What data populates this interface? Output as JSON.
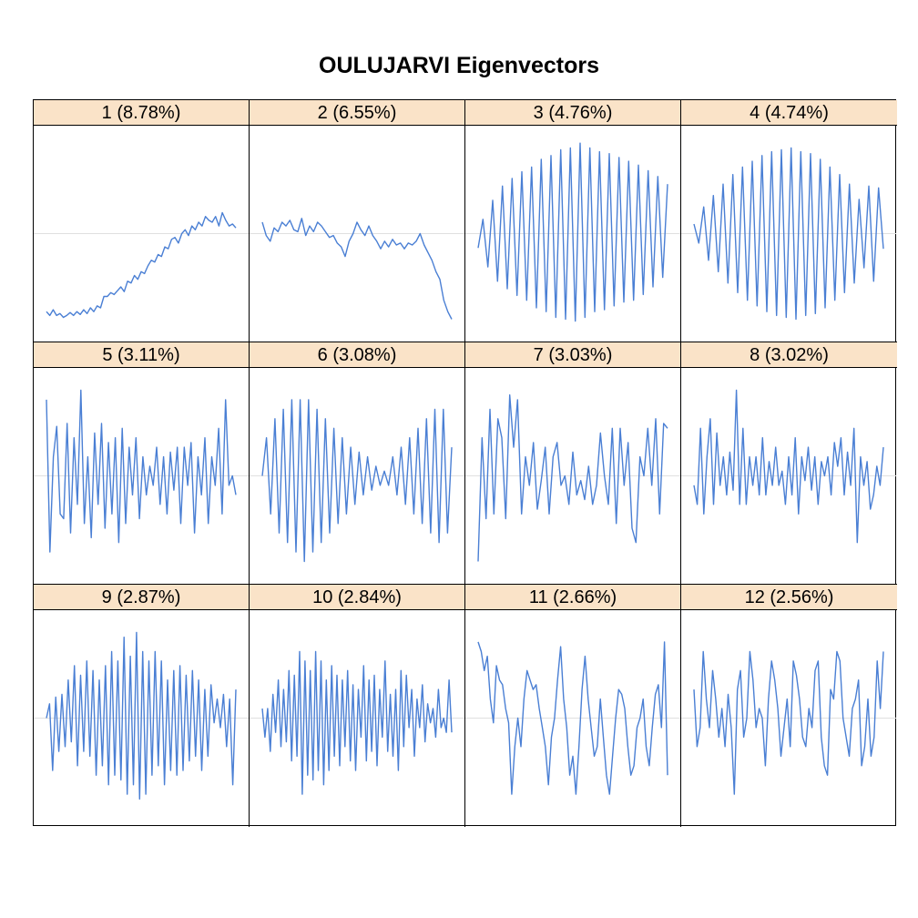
{
  "chart_data": {
    "type": "line",
    "title": "OULUJARVI Eigenvectors",
    "layout": "4x3 panel grid",
    "zero_line": true,
    "ylim": [
      -1,
      1
    ],
    "line_color": "#4a7fd4",
    "strip_color": "#fae3c8",
    "gridline_color": "#e0e0e0",
    "panels": [
      {
        "label": "1 (8.78%)",
        "values": [
          -0.82,
          -0.86,
          -0.8,
          -0.86,
          -0.84,
          -0.88,
          -0.86,
          -0.83,
          -0.86,
          -0.82,
          -0.85,
          -0.8,
          -0.84,
          -0.78,
          -0.82,
          -0.76,
          -0.78,
          -0.66,
          -0.66,
          -0.62,
          -0.64,
          -0.6,
          -0.56,
          -0.61,
          -0.5,
          -0.52,
          -0.44,
          -0.48,
          -0.4,
          -0.42,
          -0.34,
          -0.28,
          -0.3,
          -0.22,
          -0.24,
          -0.14,
          -0.16,
          -0.06,
          -0.04,
          -0.1,
          0.0,
          0.04,
          -0.02,
          0.08,
          0.04,
          0.12,
          0.08,
          0.18,
          0.14,
          0.12,
          0.18,
          0.08,
          0.22,
          0.14,
          0.08,
          0.1,
          0.06
        ]
      },
      {
        "label": "2 (6.55%)",
        "values": [
          0.12,
          -0.02,
          -0.08,
          0.06,
          0.02,
          0.12,
          0.08,
          0.14,
          0.04,
          0.02,
          0.16,
          -0.02,
          0.08,
          0.02,
          0.12,
          0.08,
          0.02,
          -0.04,
          -0.02,
          -0.1,
          -0.14,
          -0.24,
          -0.08,
          0.0,
          0.12,
          0.04,
          -0.02,
          0.08,
          -0.02,
          -0.08,
          -0.16,
          -0.08,
          -0.14,
          -0.06,
          -0.12,
          -0.1,
          -0.16,
          -0.1,
          -0.12,
          -0.08,
          0.0,
          -0.12,
          -0.2,
          -0.28,
          -0.4,
          -0.48,
          -0.7,
          -0.82,
          -0.9
        ]
      },
      {
        "label": "3 (4.76%)",
        "values": [
          -0.15,
          0.15,
          -0.35,
          0.35,
          -0.5,
          0.5,
          -0.58,
          0.58,
          -0.65,
          0.65,
          -0.7,
          0.7,
          -0.78,
          0.78,
          -0.82,
          0.82,
          -0.88,
          0.88,
          -0.9,
          0.9,
          -0.92,
          0.95,
          -0.88,
          0.9,
          -0.82,
          0.86,
          -0.8,
          0.84,
          -0.76,
          0.8,
          -0.72,
          0.76,
          -0.7,
          0.72,
          -0.64,
          0.66,
          -0.56,
          0.6,
          -0.46,
          0.52
        ]
      },
      {
        "label": "4 (4.74%)",
        "values": [
          0.1,
          -0.1,
          0.28,
          -0.28,
          0.4,
          -0.4,
          0.52,
          -0.52,
          0.62,
          -0.62,
          0.7,
          -0.7,
          0.76,
          -0.76,
          0.82,
          -0.82,
          0.86,
          -0.86,
          0.88,
          -0.88,
          0.9,
          -0.9,
          0.86,
          -0.86,
          0.84,
          -0.84,
          0.78,
          -0.78,
          0.7,
          -0.7,
          0.62,
          -0.62,
          0.52,
          -0.52,
          0.36,
          -0.36,
          0.5,
          -0.5,
          0.48,
          -0.16
        ]
      },
      {
        "label": "5 (3.11%)",
        "values": [
          0.8,
          -0.8,
          0.2,
          0.52,
          -0.4,
          -0.45,
          0.55,
          -0.6,
          0.4,
          -0.3,
          0.9,
          -0.5,
          0.2,
          -0.65,
          0.45,
          -0.3,
          0.55,
          -0.55,
          0.35,
          -0.4,
          0.4,
          -0.7,
          0.5,
          -0.5,
          0.3,
          -0.2,
          0.4,
          -0.45,
          0.2,
          -0.2,
          0.1,
          -0.1,
          0.3,
          -0.3,
          0.2,
          -0.4,
          0.25,
          -0.15,
          0.3,
          -0.5,
          0.3,
          -0.1,
          0.35,
          -0.6,
          0.2,
          -0.2,
          0.4,
          -0.5,
          0.2,
          -0.1,
          0.5,
          -0.4,
          0.8,
          -0.1,
          0.0,
          -0.2
        ]
      },
      {
        "label": "6 (3.08%)",
        "values": [
          0.0,
          0.4,
          -0.4,
          0.6,
          -0.6,
          0.7,
          -0.7,
          0.8,
          -0.8,
          0.8,
          -0.9,
          0.8,
          -0.8,
          0.7,
          -0.7,
          0.6,
          -0.6,
          0.5,
          -0.5,
          0.4,
          -0.4,
          0.3,
          -0.3,
          0.25,
          -0.2,
          0.2,
          -0.15,
          0.1,
          -0.1,
          0.05,
          -0.1,
          0.2,
          -0.2,
          0.3,
          -0.3,
          0.4,
          -0.4,
          0.5,
          -0.5,
          0.6,
          -0.6,
          0.7,
          -0.7,
          0.7,
          -0.6,
          0.3
        ]
      },
      {
        "label": "7 (3.03%)",
        "values": [
          -0.9,
          0.4,
          -0.45,
          0.7,
          -0.4,
          0.6,
          0.4,
          -0.45,
          0.85,
          0.3,
          0.8,
          -0.4,
          0.2,
          -0.1,
          0.35,
          -0.35,
          -0.05,
          0.3,
          -0.4,
          0.2,
          0.35,
          -0.1,
          0.0,
          -0.3,
          0.25,
          -0.2,
          -0.05,
          -0.25,
          0.1,
          -0.3,
          -0.1,
          0.45,
          0.0,
          -0.3,
          0.5,
          -0.5,
          0.5,
          -0.1,
          0.35,
          -0.55,
          -0.7,
          0.2,
          0.0,
          0.5,
          -0.1,
          0.6,
          -0.4,
          0.55,
          0.5
        ]
      },
      {
        "label": "8 (3.02%)",
        "values": [
          -0.1,
          -0.3,
          0.5,
          -0.4,
          0.2,
          0.6,
          -0.3,
          0.45,
          -0.1,
          0.2,
          -0.2,
          0.25,
          -0.15,
          0.9,
          -0.3,
          0.5,
          -0.3,
          0.2,
          -0.1,
          0.2,
          -0.2,
          0.4,
          -0.2,
          0.15,
          -0.1,
          0.3,
          -0.1,
          0.05,
          -0.3,
          0.2,
          -0.2,
          0.4,
          -0.4,
          0.2,
          -0.05,
          0.3,
          -0.15,
          0.2,
          -0.3,
          0.15,
          0.0,
          0.2,
          -0.2,
          0.35,
          0.1,
          0.4,
          -0.2,
          0.25,
          -0.1,
          0.5,
          -0.7,
          0.2,
          -0.1,
          0.15,
          -0.35,
          -0.2,
          0.1,
          -0.1,
          0.3
        ]
      },
      {
        "label": "9 (2.87%)",
        "values": [
          0.0,
          0.15,
          -0.55,
          0.22,
          -0.35,
          0.25,
          -0.3,
          0.4,
          -0.25,
          0.55,
          -0.5,
          0.45,
          -0.35,
          0.6,
          -0.4,
          0.5,
          -0.6,
          0.4,
          -0.5,
          0.55,
          -0.7,
          0.7,
          -0.6,
          0.6,
          -0.65,
          0.85,
          -0.8,
          0.65,
          -0.7,
          0.9,
          -0.85,
          0.7,
          -0.8,
          0.6,
          -0.6,
          0.7,
          -0.5,
          0.6,
          -0.7,
          0.4,
          -0.55,
          0.5,
          -0.6,
          0.55,
          -0.55,
          0.45,
          -0.45,
          0.5,
          -0.4,
          0.4,
          -0.55,
          0.3,
          -0.4,
          0.35,
          -0.05,
          0.2,
          -0.1,
          0.25,
          -0.3,
          0.2,
          -0.7,
          0.3
        ]
      },
      {
        "label": "10 (2.84%)",
        "values": [
          0.1,
          -0.2,
          0.1,
          -0.35,
          0.25,
          -0.15,
          0.4,
          -0.3,
          0.3,
          -0.25,
          0.5,
          -0.45,
          0.45,
          -0.4,
          0.7,
          -0.8,
          0.6,
          -0.6,
          0.5,
          -0.65,
          0.7,
          -0.55,
          0.6,
          -0.7,
          0.4,
          -0.55,
          0.55,
          -0.4,
          0.45,
          -0.5,
          0.4,
          -0.3,
          0.5,
          -0.45,
          0.35,
          -0.55,
          0.3,
          -0.2,
          0.55,
          -0.45,
          0.4,
          -0.35,
          0.45,
          -0.5,
          0.3,
          -0.2,
          0.6,
          -0.35,
          0.25,
          -0.4,
          0.3,
          -0.55,
          0.5,
          -0.3,
          0.45,
          -0.1,
          0.3,
          -0.4,
          0.2,
          -0.1,
          0.35,
          -0.25,
          0.15,
          -0.05,
          0.1,
          -0.2,
          0.3,
          -0.1,
          0.0,
          -0.15,
          0.4,
          -0.15
        ]
      },
      {
        "label": "11 (2.66%)",
        "values": [
          0.8,
          0.7,
          0.5,
          0.65,
          0.2,
          -0.05,
          0.55,
          0.4,
          0.35,
          0.1,
          -0.05,
          -0.8,
          -0.3,
          0.0,
          -0.3,
          0.2,
          0.5,
          0.4,
          0.3,
          0.35,
          0.1,
          -0.1,
          -0.3,
          -0.7,
          -0.2,
          0.0,
          0.4,
          0.75,
          0.2,
          -0.1,
          -0.6,
          -0.4,
          -0.8,
          -0.3,
          0.3,
          0.65,
          0.2,
          -0.1,
          -0.4,
          -0.3,
          0.2,
          -0.2,
          -0.6,
          -0.8,
          -0.4,
          0.0,
          0.3,
          0.25,
          0.1,
          -0.3,
          -0.6,
          -0.5,
          -0.1,
          0.0,
          0.2,
          -0.3,
          -0.5,
          -0.1,
          0.25,
          0.35,
          -0.1,
          0.8,
          -0.6
        ]
      },
      {
        "label": "12 (2.56%)",
        "values": [
          0.3,
          -0.3,
          -0.1,
          0.7,
          0.2,
          -0.1,
          0.5,
          0.2,
          -0.2,
          0.1,
          -0.3,
          0.25,
          -0.1,
          -0.8,
          0.3,
          0.5,
          -0.2,
          0.0,
          0.7,
          0.4,
          -0.1,
          0.1,
          0.0,
          -0.5,
          0.2,
          0.6,
          0.4,
          0.1,
          -0.4,
          -0.1,
          0.2,
          -0.3,
          0.6,
          0.45,
          0.2,
          -0.2,
          -0.3,
          0.1,
          -0.1,
          0.5,
          0.6,
          -0.2,
          -0.5,
          -0.6,
          0.3,
          0.2,
          0.7,
          0.6,
          0.0,
          -0.2,
          -0.4,
          0.1,
          0.2,
          0.4,
          -0.5,
          -0.3,
          0.2,
          -0.4,
          -0.2,
          0.6,
          0.1,
          0.7
        ]
      }
    ]
  }
}
